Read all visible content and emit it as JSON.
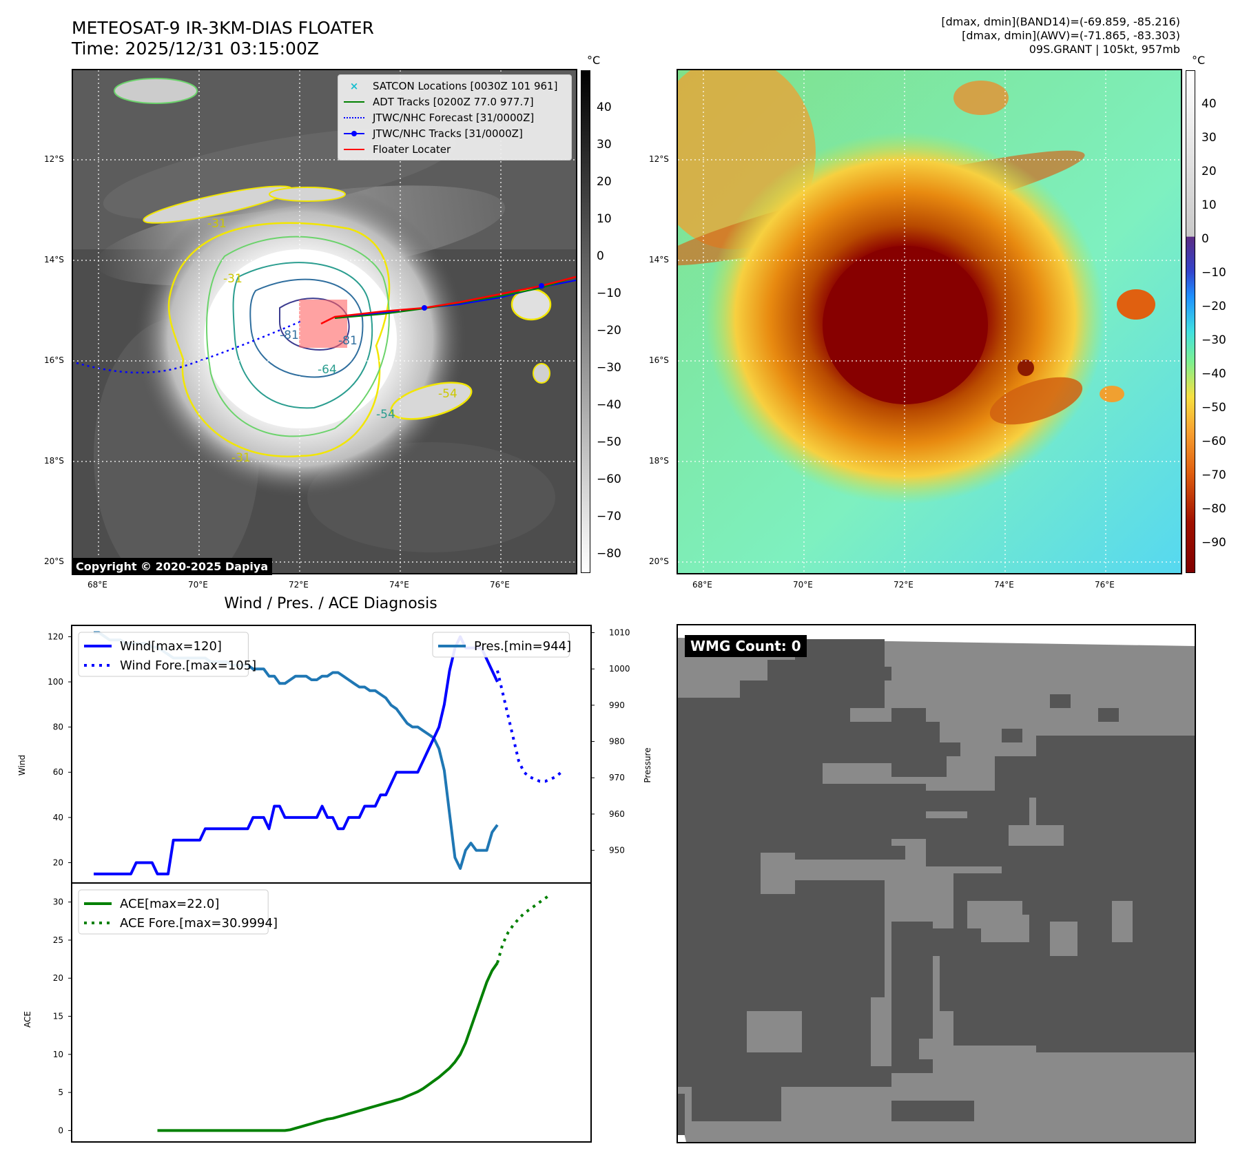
{
  "header": {
    "title_line1": "METEOSAT-9 IR-3KM-DIAS FLOATER",
    "title_line2": "Time: 2025/12/31 03:15:00Z",
    "right_line1": "[dmax, dmin](BAND14)=(-69.859, -85.216)",
    "right_line2": "[dmax, dmin](AWV)=(-71.865, -83.303)",
    "right_line3": "09S.GRANT | 105kt, 957mb"
  },
  "ir_map": {
    "unit": "°C",
    "lat_ticks": [
      "12°S",
      "14°S",
      "16°S",
      "18°S",
      "20°S"
    ],
    "lon_ticks": [
      "68°E",
      "70°E",
      "72°E",
      "74°E",
      "76°E"
    ],
    "colorbar_ticks": [
      "40",
      "30",
      "20",
      "10",
      "0",
      "−10",
      "−20",
      "−30",
      "−40",
      "−50",
      "−60",
      "−70",
      "−80"
    ],
    "copyright": "Copyright © 2020-2025 Dapiya",
    "contour_labels": [
      "-31",
      "-31",
      "-31",
      "-64",
      "-81",
      "-81",
      "-54",
      "-54"
    ],
    "legend": [
      {
        "label": "SATCON Locations [0030Z 101 961]",
        "color": "#17becf",
        "style": "x"
      },
      {
        "label": "ADT Tracks [0200Z 77.0 977.7]",
        "color": "#008000",
        "style": "solid"
      },
      {
        "label": "JTWC/NHC Forecast [31/0000Z]",
        "color": "#0000ff",
        "style": "dotted"
      },
      {
        "label": "JTWC/NHC Tracks [31/0000Z]",
        "color": "#0000ff",
        "style": "dot-line"
      },
      {
        "label": "Floater Locater",
        "color": "#ff0000",
        "style": "solid"
      }
    ]
  },
  "awv_map": {
    "unit": "°C",
    "lat_ticks": [
      "12°S",
      "14°S",
      "16°S",
      "18°S",
      "20°S"
    ],
    "lon_ticks": [
      "68°E",
      "70°E",
      "72°E",
      "74°E",
      "76°E"
    ],
    "colorbar_ticks": [
      "40",
      "30",
      "20",
      "10",
      "0",
      "−10",
      "−20",
      "−30",
      "−40",
      "−50",
      "−60",
      "−70",
      "−80",
      "−90"
    ]
  },
  "diagnosis": {
    "title": "Wind / Pres. / ACE Diagnosis"
  },
  "wmg": {
    "label": "WMG Count: 0"
  },
  "chart_data": [
    {
      "type": "line",
      "title": "Wind / Pres. / ACE Diagnosis",
      "ylabel": "Wind",
      "ylabel_right": "Pressure",
      "ylim": [
        11,
        125
      ],
      "ylim_right": [
        941,
        1012
      ],
      "yticks": [
        "20",
        "40",
        "60",
        "80",
        "100",
        "120"
      ],
      "yticks_right": [
        "950",
        "960",
        "970",
        "980",
        "990",
        "1000",
        "1010"
      ],
      "series": [
        {
          "name": "Wind[max=120]",
          "color": "#0000ff",
          "style": "solid",
          "values": [
            15,
            15,
            15,
            15,
            15,
            15,
            15,
            15,
            20,
            20,
            20,
            20,
            15,
            15,
            15,
            30,
            30,
            30,
            30,
            30,
            30,
            35,
            35,
            35,
            35,
            35,
            35,
            35,
            35,
            35,
            40,
            40,
            40,
            35,
            45,
            45,
            40,
            40,
            40,
            40,
            40,
            40,
            40,
            45,
            40,
            40,
            35,
            35,
            40,
            40,
            40,
            45,
            45,
            45,
            50,
            50,
            55,
            60,
            60,
            60,
            60,
            60,
            65,
            70,
            75,
            80,
            90,
            105,
            115,
            120,
            115,
            115,
            115,
            115,
            110,
            105,
            100
          ]
        },
        {
          "name": "Wind Fore.[max=105]",
          "color": "#0000ff",
          "style": "dotted",
          "values": [
            105,
            95,
            85,
            75,
            65,
            60,
            58,
            57,
            56,
            56,
            57,
            58,
            60
          ]
        },
        {
          "name": "Pres.[min=944]",
          "color": "#1f77b4",
          "style": "solid",
          "values": [
            1010,
            1010,
            1009,
            1008,
            1008,
            1008,
            1007,
            1007,
            1007,
            1007,
            1007,
            1006,
            1006,
            1005,
            1004,
            1003,
            1003,
            1003,
            1003,
            1003,
            1003,
            1003,
            1002,
            1002,
            1002,
            1002,
            1001,
            1001,
            1001,
            1001,
            1000,
            1000,
            1000,
            998,
            998,
            996,
            996,
            997,
            998,
            998,
            998,
            997,
            997,
            998,
            998,
            999,
            999,
            998,
            997,
            996,
            995,
            995,
            994,
            994,
            993,
            992,
            990,
            989,
            987,
            985,
            984,
            984,
            983,
            982,
            981,
            978,
            972,
            960,
            948,
            945,
            950,
            952,
            950,
            950,
            950,
            955,
            957
          ]
        }
      ]
    },
    {
      "type": "line",
      "ylabel": "ACE",
      "ylim": [
        -1.5,
        32.5
      ],
      "yticks": [
        "0",
        "5",
        "10",
        "15",
        "20",
        "25",
        "30"
      ],
      "series": [
        {
          "name": "ACE[max=22.0]",
          "color": "#008000",
          "style": "solid",
          "values": [
            0,
            0,
            0,
            0,
            0,
            0,
            0,
            0,
            0,
            0,
            0,
            0,
            0,
            0,
            0,
            0,
            0,
            0,
            0,
            0,
            0,
            0,
            0,
            0,
            0,
            0.1,
            0.3,
            0.5,
            0.7,
            0.9,
            1.1,
            1.3,
            1.5,
            1.6,
            1.8,
            2.0,
            2.2,
            2.4,
            2.6,
            2.8,
            3.0,
            3.2,
            3.4,
            3.6,
            3.8,
            4.0,
            4.2,
            4.5,
            4.8,
            5.1,
            5.5,
            6.0,
            6.5,
            7.0,
            7.6,
            8.2,
            9.0,
            10.0,
            11.5,
            13.5,
            15.5,
            17.5,
            19.5,
            21.0,
            22.0
          ]
        },
        {
          "name": "ACE Fore.[max=30.9994]",
          "color": "#008000",
          "style": "dotted",
          "values": [
            22.0,
            24.5,
            26.0,
            27.0,
            27.8,
            28.5,
            29.0,
            29.5,
            30.0,
            30.5,
            30.9994
          ]
        }
      ]
    }
  ]
}
